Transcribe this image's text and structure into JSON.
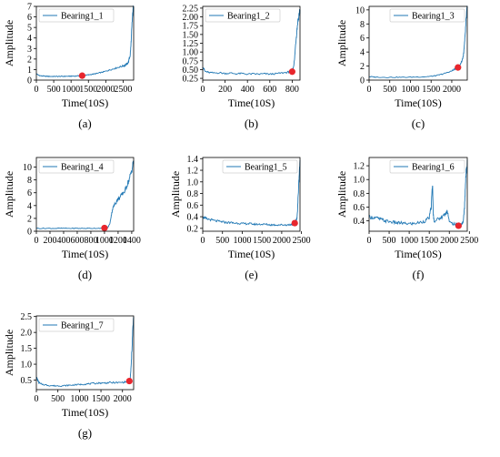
{
  "chart_data": [
    {
      "type": "line",
      "caption": "(a)",
      "xlabel": "Time(10S)",
      "ylabel": "Amplitude",
      "xlim": [
        0,
        2803
      ],
      "ylim": [
        0,
        7
      ],
      "xticks": [
        0,
        500,
        1000,
        1500,
        2000,
        2500
      ],
      "yticks": [
        0,
        1,
        2,
        3,
        4,
        5,
        6,
        7
      ],
      "legend_position": "top-left",
      "color": "#1f77b4",
      "marker_color": "#e8262d",
      "series": [
        {
          "name": "Bearing1_1",
          "x": [
            0,
            50,
            100,
            200,
            300,
            400,
            500,
            600,
            700,
            800,
            900,
            1000,
            1100,
            1200,
            1300,
            1400,
            1500,
            1600,
            1700,
            1800,
            1900,
            2000,
            2100,
            2200,
            2300,
            2400,
            2500,
            2550,
            2600,
            2650,
            2700,
            2720,
            2740,
            2760,
            2780,
            2800
          ],
          "y": [
            0.6,
            0.5,
            0.42,
            0.38,
            0.36,
            0.35,
            0.35,
            0.35,
            0.35,
            0.36,
            0.36,
            0.37,
            0.38,
            0.4,
            0.42,
            0.45,
            0.5,
            0.55,
            0.6,
            0.68,
            0.75,
            0.85,
            0.95,
            1.05,
            1.15,
            1.25,
            1.35,
            1.4,
            1.5,
            1.7,
            2.3,
            3.0,
            4.2,
            5.5,
            6.4,
            6.9
          ]
        }
      ],
      "marker": {
        "x": 1320,
        "y": 0.42
      }
    },
    {
      "type": "line",
      "caption": "(b)",
      "xlabel": "Time(10S)",
      "ylabel": "",
      "xlim": [
        0,
        870
      ],
      "ylim": [
        0.2,
        2.3
      ],
      "xticks": [
        0,
        200,
        400,
        600,
        800
      ],
      "yticks": [
        0.25,
        0.5,
        0.75,
        1.0,
        1.25,
        1.5,
        1.75,
        2.0,
        2.25
      ],
      "ytick_labels": [
        "0.25",
        "0.50",
        "0.75",
        "1.00",
        "1.25",
        "1.50",
        "1.75",
        "2.00",
        "2.25"
      ],
      "legend_position": "top-left",
      "color": "#1f77b4",
      "marker_color": "#e8262d",
      "series": [
        {
          "name": "Bearing1_2",
          "x": [
            0,
            20,
            50,
            100,
            150,
            200,
            250,
            300,
            350,
            400,
            450,
            500,
            550,
            600,
            650,
            700,
            750,
            780,
            800,
            810,
            820,
            830,
            840,
            850,
            860,
            870
          ],
          "y": [
            0.6,
            0.45,
            0.42,
            0.4,
            0.41,
            0.39,
            0.4,
            0.38,
            0.39,
            0.37,
            0.38,
            0.37,
            0.38,
            0.37,
            0.38,
            0.4,
            0.42,
            0.44,
            0.48,
            0.55,
            0.75,
            1.2,
            1.55,
            1.85,
            2.05,
            2.2
          ]
        }
      ],
      "marker": {
        "x": 800,
        "y": 0.44
      }
    },
    {
      "type": "line",
      "caption": "(c)",
      "xlabel": "Time(10S)",
      "ylabel": "Amplitude",
      "xlim": [
        0,
        2375
      ],
      "ylim": [
        0,
        10.5
      ],
      "xticks": [
        0,
        500,
        1000,
        1500,
        2000
      ],
      "yticks": [
        0,
        2,
        4,
        6,
        8,
        10
      ],
      "legend_position": "top-right",
      "color": "#1f77b4",
      "marker_color": "#e8262d",
      "series": [
        {
          "name": "Bearing1_3",
          "x": [
            0,
            100,
            200,
            400,
            600,
            800,
            1000,
            1200,
            1400,
            1500,
            1600,
            1700,
            1800,
            1900,
            2000,
            2050,
            2100,
            2150,
            2200,
            2250,
            2280,
            2300,
            2320,
            2340,
            2360,
            2375
          ],
          "y": [
            0.5,
            0.45,
            0.42,
            0.4,
            0.4,
            0.4,
            0.42,
            0.45,
            0.5,
            0.55,
            0.62,
            0.75,
            0.9,
            1.1,
            1.3,
            1.5,
            1.7,
            1.9,
            2.2,
            2.8,
            3.5,
            4.5,
            6.0,
            8.0,
            9.5,
            10.3
          ]
        }
      ],
      "marker": {
        "x": 2150,
        "y": 1.8
      }
    },
    {
      "type": "line",
      "caption": "(d)",
      "xlabel": "Time(10S)",
      "ylabel": "Amplitude",
      "xlim": [
        0,
        1428
      ],
      "ylim": [
        0,
        11.5
      ],
      "xticks": [
        0,
        200,
        400,
        600,
        800,
        1000,
        1200,
        1400
      ],
      "yticks": [
        0,
        2,
        4,
        6,
        8,
        10
      ],
      "legend_position": "top-left",
      "color": "#1f77b4",
      "marker_color": "#e8262d",
      "series": [
        {
          "name": "Bearing1_4",
          "x": [
            0,
            100,
            200,
            300,
            400,
            500,
            600,
            700,
            800,
            900,
            1000,
            1050,
            1080,
            1100,
            1120,
            1150,
            1180,
            1200,
            1230,
            1260,
            1300,
            1330,
            1360,
            1390,
            1410,
            1428
          ],
          "y": [
            0.45,
            0.45,
            0.45,
            0.45,
            0.45,
            0.45,
            0.45,
            0.45,
            0.45,
            0.47,
            0.5,
            0.6,
            1.2,
            2.5,
            3.5,
            4.2,
            4.7,
            5.0,
            5.3,
            5.8,
            6.3,
            7.2,
            8.0,
            9.0,
            10.0,
            11.0
          ]
        }
      ],
      "marker": {
        "x": 1000,
        "y": 0.5
      }
    },
    {
      "type": "line",
      "caption": "(e)",
      "xlabel": "Time(10S)",
      "ylabel": "Amplitude",
      "xlim": [
        0,
        2463
      ],
      "ylim": [
        0.15,
        1.42
      ],
      "xticks": [
        0,
        500,
        1000,
        1500,
        2000,
        2500
      ],
      "yticks": [
        0.2,
        0.4,
        0.6,
        0.8,
        1.0,
        1.2,
        1.4
      ],
      "ytick_labels": [
        "0.2",
        "0.4",
        "0.6",
        "0.8",
        "1.0",
        "1.2",
        "1.4"
      ],
      "legend_position": "top-right",
      "color": "#1f77b4",
      "marker_color": "#e8262d",
      "series": [
        {
          "name": "Bearing1_5",
          "x": [
            0,
            50,
            100,
            200,
            300,
            400,
            500,
            600,
            700,
            800,
            900,
            1000,
            1100,
            1200,
            1300,
            1400,
            1500,
            1600,
            1700,
            1800,
            1900,
            2000,
            2100,
            2200,
            2250,
            2300,
            2340,
            2380,
            2400,
            2420,
            2440,
            2463
          ],
          "y": [
            0.4,
            0.38,
            0.36,
            0.35,
            0.33,
            0.32,
            0.31,
            0.3,
            0.3,
            0.29,
            0.29,
            0.28,
            0.28,
            0.28,
            0.27,
            0.27,
            0.27,
            0.27,
            0.26,
            0.26,
            0.26,
            0.26,
            0.26,
            0.26,
            0.27,
            0.28,
            0.3,
            0.35,
            0.5,
            0.8,
            1.1,
            1.38
          ]
        }
      ],
      "marker": {
        "x": 2330,
        "y": 0.29
      }
    },
    {
      "type": "line",
      "caption": "(f)",
      "xlabel": "Time(10S)",
      "ylabel": "Amplitude",
      "xlim": [
        0,
        2448
      ],
      "ylim": [
        0.25,
        1.32
      ],
      "xticks": [
        0,
        500,
        1000,
        1500,
        2000,
        2500
      ],
      "yticks": [
        0.4,
        0.6,
        0.8,
        1.0,
        1.2
      ],
      "ytick_labels": [
        "0.4",
        "0.6",
        "0.8",
        "1.0",
        "1.2"
      ],
      "legend_position": "top-right",
      "color": "#1f77b4",
      "marker_color": "#e8262d",
      "series": [
        {
          "name": "Bearing1_6",
          "x": [
            0,
            100,
            200,
            300,
            400,
            500,
            600,
            700,
            800,
            900,
            1000,
            1100,
            1200,
            1300,
            1400,
            1500,
            1550,
            1580,
            1600,
            1620,
            1700,
            1800,
            1900,
            1950,
            2000,
            2100,
            2200,
            2250,
            2300,
            2350,
            2380,
            2400,
            2420,
            2448
          ],
          "y": [
            0.46,
            0.45,
            0.44,
            0.42,
            0.4,
            0.39,
            0.38,
            0.37,
            0.37,
            0.36,
            0.36,
            0.36,
            0.37,
            0.38,
            0.4,
            0.45,
            0.6,
            0.95,
            0.5,
            0.4,
            0.42,
            0.45,
            0.5,
            0.56,
            0.38,
            0.36,
            0.34,
            0.33,
            0.34,
            0.4,
            0.6,
            0.9,
            1.1,
            1.29
          ]
        }
      ],
      "marker": {
        "x": 2230,
        "y": 0.33
      }
    },
    {
      "type": "line",
      "caption": "(g)",
      "xlabel": "Time(10S)",
      "ylabel": "Amplitude",
      "xlim": [
        0,
        2259
      ],
      "ylim": [
        0.2,
        2.52
      ],
      "xticks": [
        0,
        500,
        1000,
        1500,
        2000
      ],
      "yticks": [
        0.5,
        1.0,
        1.5,
        2.0,
        2.5
      ],
      "ytick_labels": [
        "0.5",
        "1.0",
        "1.5",
        "2.0",
        "2.5"
      ],
      "legend_position": "top-left",
      "color": "#1f77b4",
      "marker_color": "#e8262d",
      "series": [
        {
          "name": "Bearing1_7",
          "x": [
            0,
            30,
            60,
            100,
            200,
            300,
            400,
            500,
            600,
            700,
            800,
            900,
            1000,
            1100,
            1200,
            1300,
            1400,
            1500,
            1600,
            1700,
            1800,
            1900,
            2000,
            2100,
            2150,
            2180,
            2200,
            2220,
            2240,
            2259
          ],
          "y": [
            0.6,
            0.5,
            0.42,
            0.38,
            0.35,
            0.33,
            0.32,
            0.32,
            0.32,
            0.33,
            0.34,
            0.35,
            0.36,
            0.37,
            0.38,
            0.39,
            0.4,
            0.41,
            0.41,
            0.42,
            0.42,
            0.42,
            0.43,
            0.45,
            0.48,
            0.55,
            0.9,
            1.5,
            2.1,
            2.45
          ]
        }
      ],
      "marker": {
        "x": 2160,
        "y": 0.47
      }
    }
  ]
}
